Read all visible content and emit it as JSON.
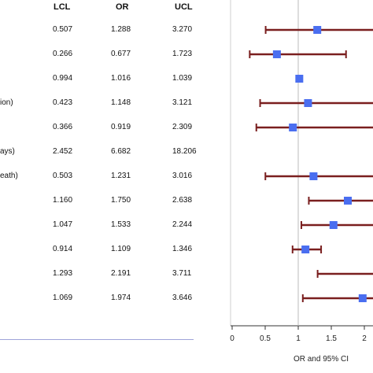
{
  "table": {
    "headers": {
      "lcl": "LCL",
      "or": "OR",
      "ucl": "UCL"
    },
    "rows": [
      {
        "label": "",
        "lcl": "0.507",
        "or": "1.288",
        "ucl": "3.270"
      },
      {
        "label": "",
        "lcl": "0.266",
        "or": "0.677",
        "ucl": "1.723"
      },
      {
        "label": "",
        "lcl": "0.994",
        "or": "1.016",
        "ucl": "1.039"
      },
      {
        "label": "ion)",
        "lcl": "0.423",
        "or": "1.148",
        "ucl": "3.121"
      },
      {
        "label": "",
        "lcl": "0.366",
        "or": "0.919",
        "ucl": "2.309"
      },
      {
        "label": "ays)",
        "lcl": "2.452",
        "or": "6.682",
        "ucl": "18.206"
      },
      {
        "label": "eath)",
        "lcl": "0.503",
        "or": "1.231",
        "ucl": "3.016"
      },
      {
        "label": "",
        "lcl": "1.160",
        "or": "1.750",
        "ucl": "2.638"
      },
      {
        "label": "",
        "lcl": "1.047",
        "or": "1.533",
        "ucl": "2.244"
      },
      {
        "label": "",
        "lcl": "0.914",
        "or": "1.109",
        "ucl": "1.346"
      },
      {
        "label": "",
        "lcl": "1.293",
        "or": "2.191",
        "ucl": "3.711"
      },
      {
        "label": "",
        "lcl": "1.069",
        "or": "1.974",
        "ucl": "3.646"
      }
    ]
  },
  "chart_data": {
    "type": "scatter",
    "subtype": "forest-plot",
    "xlabel": "OR and 95% CI",
    "xticks": [
      "0",
      "0.5",
      "1",
      "1.5",
      "2"
    ],
    "reference_line": 1,
    "xlim": [
      0,
      2.03
    ],
    "clipped_right": true,
    "points": [
      {
        "or": 1.288,
        "lcl": 0.507,
        "ucl": 3.27
      },
      {
        "or": 0.677,
        "lcl": 0.266,
        "ucl": 1.723
      },
      {
        "or": 1.016,
        "lcl": 0.994,
        "ucl": 1.039
      },
      {
        "or": 1.148,
        "lcl": 0.423,
        "ucl": 3.121
      },
      {
        "or": 0.919,
        "lcl": 0.366,
        "ucl": 2.309
      },
      {
        "or": 6.682,
        "lcl": 2.452,
        "ucl": 18.206
      },
      {
        "or": 1.231,
        "lcl": 0.503,
        "ucl": 3.016
      },
      {
        "or": 1.75,
        "lcl": 1.16,
        "ucl": 2.638
      },
      {
        "or": 1.533,
        "lcl": 1.047,
        "ucl": 2.244
      },
      {
        "or": 1.109,
        "lcl": 0.914,
        "ucl": 1.346
      },
      {
        "or": 2.191,
        "lcl": 1.293,
        "ucl": 3.711
      },
      {
        "or": 1.974,
        "lcl": 1.069,
        "ucl": 3.646
      }
    ],
    "colors": {
      "ci_line": "#7a1f1f",
      "marker": "#4a6ef0",
      "reference": "#bbbbbb",
      "axis": "#333333"
    }
  }
}
